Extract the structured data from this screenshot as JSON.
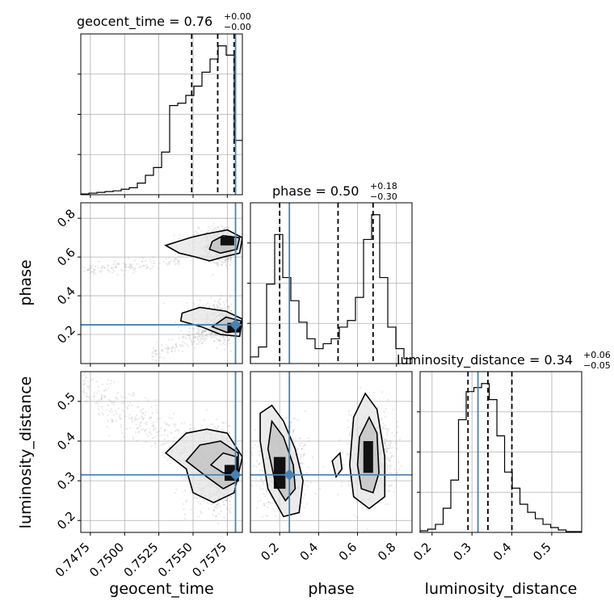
{
  "chart_data": {
    "type": "corner",
    "parameters": [
      {
        "name": "geocent_time",
        "xlabel": "geocent_time",
        "range": [
          0.7468,
          0.7586
        ],
        "ticks": [
          0.7475,
          0.75,
          0.7525,
          0.755,
          0.7575
        ],
        "tick_labels": [
          "0.7475",
          "0.7500",
          "0.7525",
          "0.7550",
          "0.7575"
        ],
        "truth": 0.7581,
        "quantiles": [
          0.7549,
          0.7568,
          0.758
        ],
        "title": {
          "label": "geocent_time = 0.76",
          "plus": "+0.00",
          "minus": "−0.00"
        },
        "hist": {
          "edges": [
            0.7468,
            0.74739,
            0.74798,
            0.74857,
            0.74916,
            0.74975,
            0.75034,
            0.75093,
            0.75152,
            0.75211,
            0.7527,
            0.75329,
            0.75388,
            0.75447,
            0.75506,
            0.75565,
            0.75624,
            0.75683,
            0.75742,
            0.75801,
            0.7586
          ],
          "counts": [
            1,
            2,
            3,
            4,
            5,
            7,
            9,
            15,
            25,
            35,
            55,
            115,
            118,
            128,
            140,
            158,
            175,
            192,
            180,
            70
          ]
        }
      },
      {
        "name": "phase",
        "xlabel": "phase",
        "ylabel": "phase",
        "range": [
          0.05,
          0.88
        ],
        "ticks": [
          0.2,
          0.4,
          0.6,
          0.8
        ],
        "tick_labels": [
          "0.2",
          "0.4",
          "0.6",
          "0.8"
        ],
        "truth": 0.25,
        "quantiles": [
          0.2,
          0.5,
          0.68
        ],
        "title": {
          "label": "phase = 0.50",
          "plus": "+0.18",
          "minus": "−0.30"
        },
        "hist": {
          "edges": [
            0.05,
            0.0915,
            0.133,
            0.1745,
            0.216,
            0.2575,
            0.299,
            0.3405,
            0.382,
            0.4235,
            0.465,
            0.5065,
            0.548,
            0.5895,
            0.631,
            0.6725,
            0.714,
            0.7555,
            0.797,
            0.8385,
            0.88
          ],
          "counts": [
            4,
            10,
            48,
            78,
            52,
            38,
            25,
            15,
            9,
            12,
            15,
            22,
            26,
            40,
            75,
            90,
            52,
            22,
            9,
            3
          ]
        }
      },
      {
        "name": "luminosity_distance",
        "xlabel": "luminosity_distance",
        "ylabel": "luminosity_distance",
        "range": [
          0.17,
          0.575
        ],
        "ticks": [
          0.2,
          0.3,
          0.4,
          0.5
        ],
        "tick_labels": [
          "0.2",
          "0.3",
          "0.4",
          "0.5"
        ],
        "truth": 0.315,
        "quantiles": [
          0.29,
          0.34,
          0.4
        ],
        "title": {
          "label": "luminosity_distance = 0.34",
          "plus": "+0.06",
          "minus": "−0.05"
        },
        "hist": {
          "edges": [
            0.17,
            0.18925,
            0.2085,
            0.22775,
            0.247,
            0.26625,
            0.2855,
            0.30475,
            0.324,
            0.34325,
            0.3625,
            0.38175,
            0.401,
            0.42025,
            0.4395,
            0.45875,
            0.478,
            0.49725,
            0.5165,
            0.53575,
            0.555,
            0.575
          ],
          "counts": [
            2,
            4,
            10,
            30,
            65,
            140,
            175,
            180,
            185,
            165,
            120,
            75,
            55,
            35,
            25,
            17,
            10,
            6,
            3,
            1,
            1
          ]
        }
      }
    ],
    "density_colors": {
      "line": "#000000",
      "truth": "#4682b4",
      "grid": "#b0b0b0",
      "points": "#9a9a9a"
    }
  }
}
